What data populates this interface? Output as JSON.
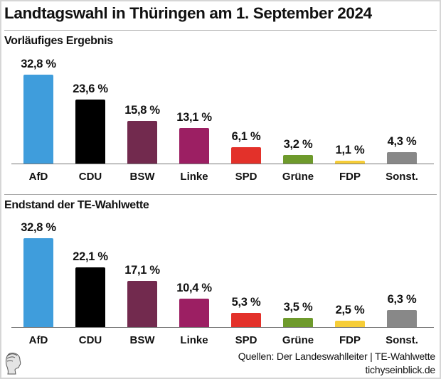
{
  "title": "Landtagswahl in Thüringen am 1. September 2024",
  "colors": {
    "AfD": "#3f9ddc",
    "CDU": "#000000",
    "BSW": "#722a4e",
    "Linke": "#9c1f63",
    "SPD": "#e3312a",
    "Grüne": "#6e9a2c",
    "FDP": "#f6cd37",
    "Sonst.": "#888888"
  },
  "chart_data": [
    {
      "type": "bar",
      "title": "Vorläufiges Ergebnis",
      "categories": [
        "AfD",
        "CDU",
        "BSW",
        "Linke",
        "SPD",
        "Grüne",
        "FDP",
        "Sonst."
      ],
      "values": [
        32.8,
        23.6,
        15.8,
        13.1,
        6.1,
        3.2,
        1.1,
        4.3
      ],
      "labels": [
        "32,8 %",
        "23,6 %",
        "15,8 %",
        "13,1 %",
        "6,1 %",
        "3,2 %",
        "1,1 %",
        "4,3 %"
      ],
      "ylim": [
        0,
        33
      ],
      "grid": false
    },
    {
      "type": "bar",
      "title": "Endstand der TE-Wahlwette",
      "categories": [
        "AfD",
        "CDU",
        "BSW",
        "Linke",
        "SPD",
        "Grüne",
        "FDP",
        "Sonst."
      ],
      "values": [
        32.8,
        22.1,
        17.1,
        10.4,
        5.3,
        3.5,
        2.5,
        6.3
      ],
      "labels": [
        "32,8 %",
        "22,1 %",
        "17,1 %",
        "10,4 %",
        "5,3 %",
        "3,5 %",
        "2,5 %",
        "6,3 %"
      ],
      "ylim": [
        0,
        33
      ],
      "grid": false
    }
  ],
  "footer": {
    "sources": "Quellen: Der Landeswahlleiter | TE-Wahlwette",
    "site": "tichyseinblick.de",
    "logo_icon": "classical-head-logo"
  }
}
